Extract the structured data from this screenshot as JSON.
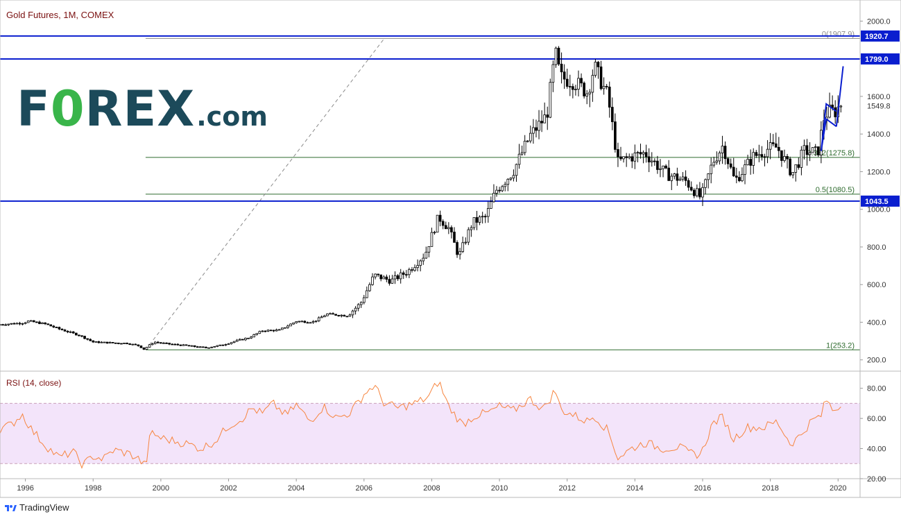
{
  "header": {
    "chart_title": "Gold Futures, 1M, COMEX",
    "rsi_title": "RSI (14, close)"
  },
  "brand": {
    "logo_main": "F",
    "logo_zero": "0",
    "logo_rest": "REX",
    "logo_domain": ".com",
    "footer": "TradingView"
  },
  "colors": {
    "up": "#ffffff",
    "down": "#000000",
    "levels": "#0a1ecf",
    "fib": "#2e6b2e",
    "rsi_line": "#f7853f",
    "rsi_band": "#f3e4fa",
    "label_bg": "#0a1ecf",
    "logo_dark": "#1c4a5a",
    "logo_green": "#39b54a"
  },
  "chart_data": {
    "type": "candlestick",
    "instrument": "Gold Futures",
    "interval": "1M",
    "exchange": "COMEX",
    "x_ticks": [
      "1996",
      "1998",
      "2000",
      "2002",
      "2004",
      "2006",
      "2008",
      "2010",
      "2012",
      "2014",
      "2016",
      "2018",
      "2020"
    ],
    "y_ticks": [
      "2000.0",
      "1800.0",
      "1600.0",
      "1400.0",
      "1200.0",
      "1000.0",
      "800.0",
      "600.0",
      "400.0",
      "200.0"
    ],
    "ylim": [
      140,
      2090
    ],
    "anchors": [
      [
        1995.25,
        388
      ],
      [
        1995.9,
        396
      ],
      [
        1996.1,
        406
      ],
      [
        1996.6,
        390
      ],
      [
        1997.0,
        364
      ],
      [
        1997.6,
        330
      ],
      [
        1998.0,
        295
      ],
      [
        1998.6,
        290
      ],
      [
        1999.0,
        288
      ],
      [
        1999.35,
        275
      ],
      [
        1999.5,
        257
      ],
      [
        1999.8,
        295
      ],
      [
        2000.2,
        285
      ],
      [
        2000.8,
        275
      ],
      [
        2001.3,
        264
      ],
      [
        2001.8,
        278
      ],
      [
        2002.2,
        300
      ],
      [
        2002.6,
        318
      ],
      [
        2003.0,
        355
      ],
      [
        2003.5,
        358
      ],
      [
        2004.0,
        405
      ],
      [
        2004.5,
        402
      ],
      [
        2004.9,
        443
      ],
      [
        2005.5,
        435
      ],
      [
        2005.9,
        500
      ],
      [
        2006.3,
        650
      ],
      [
        2006.8,
        620
      ],
      [
        2007.3,
        670
      ],
      [
        2007.8,
        760
      ],
      [
        2008.2,
        960
      ],
      [
        2008.5,
        900
      ],
      [
        2008.8,
        750
      ],
      [
        2009.2,
        930
      ],
      [
        2009.6,
        960
      ],
      [
        2009.9,
        1100
      ],
      [
        2010.4,
        1200
      ],
      [
        2010.9,
        1390
      ],
      [
        2011.4,
        1500
      ],
      [
        2011.65,
        1830
      ],
      [
        2011.8,
        1700
      ],
      [
        2012.2,
        1680
      ],
      [
        2012.6,
        1620
      ],
      [
        2012.8,
        1760
      ],
      [
        2013.2,
        1600
      ],
      [
        2013.5,
        1250
      ],
      [
        2013.9,
        1280
      ],
      [
        2014.3,
        1300
      ],
      [
        2014.9,
        1190
      ],
      [
        2015.5,
        1150
      ],
      [
        2015.95,
        1060
      ],
      [
        2016.3,
        1250
      ],
      [
        2016.6,
        1340
      ],
      [
        2016.95,
        1150
      ],
      [
        2017.5,
        1280
      ],
      [
        2017.9,
        1320
      ],
      [
        2018.2,
        1330
      ],
      [
        2018.65,
        1190
      ],
      [
        2019.0,
        1310
      ],
      [
        2019.4,
        1300
      ],
      [
        2019.6,
        1500
      ],
      [
        2019.75,
        1520
      ],
      [
        2019.95,
        1520
      ],
      [
        2020.05,
        1560
      ]
    ],
    "levels": [
      {
        "value": 1920.7,
        "label": "1920.7"
      },
      {
        "value": 1799.0,
        "label": "1799.0"
      },
      {
        "value": 1043.5,
        "label": "1043.5"
      }
    ],
    "fibonacci": [
      {
        "value": 1907.9,
        "label": "0(1907.9)"
      },
      {
        "value": 1275.8,
        "label": "0.382(1275.8)"
      },
      {
        "value": 1080.5,
        "label": "0.5(1080.5)"
      },
      {
        "value": 253.2,
        "label": "1(253.2)"
      }
    ],
    "fib_trend_line": {
      "from": [
        1999.55,
        253.2
      ],
      "to": [
        2006.6,
        1907.9
      ]
    },
    "last_price_label": "1549.8",
    "last_price": 1549.8,
    "pattern": {
      "channel_upper": [
        [
          2019.5,
          1310
        ],
        [
          2019.65,
          1560
        ],
        [
          2019.95,
          1520
        ]
      ],
      "channel_lower": [
        [
          2019.5,
          1310
        ],
        [
          2019.65,
          1480
        ],
        [
          2019.95,
          1440
        ]
      ],
      "projection": [
        [
          2019.95,
          1440
        ],
        [
          2020.15,
          1760
        ]
      ]
    },
    "rsi": {
      "period": 14,
      "ylim": [
        20,
        90
      ],
      "y_ticks": [
        "80.00",
        "60.00",
        "40.00",
        "20.00"
      ],
      "band": [
        30,
        70
      ],
      "anchors": [
        [
          1995.25,
          53
        ],
        [
          1995.6,
          56
        ],
        [
          1995.9,
          63
        ],
        [
          1996.2,
          52
        ],
        [
          1996.6,
          42
        ],
        [
          1997.0,
          34
        ],
        [
          1997.4,
          38
        ],
        [
          1997.7,
          29
        ],
        [
          1998.0,
          35
        ],
        [
          1998.3,
          33
        ],
        [
          1998.6,
          39
        ],
        [
          1999.0,
          37
        ],
        [
          1999.3,
          34
        ],
        [
          1999.55,
          28
        ],
        [
          1999.7,
          51
        ],
        [
          2000.0,
          47
        ],
        [
          2000.4,
          45
        ],
        [
          2000.8,
          43
        ],
        [
          2001.2,
          40
        ],
        [
          2001.6,
          45
        ],
        [
          2002.0,
          55
        ],
        [
          2002.4,
          60
        ],
        [
          2002.7,
          67
        ],
        [
          2003.0,
          63
        ],
        [
          2003.3,
          70
        ],
        [
          2003.7,
          62
        ],
        [
          2004.0,
          69
        ],
        [
          2004.4,
          58
        ],
        [
          2004.8,
          68
        ],
        [
          2005.2,
          60
        ],
        [
          2005.6,
          64
        ],
        [
          2006.0,
          76
        ],
        [
          2006.3,
          82
        ],
        [
          2006.6,
          70
        ],
        [
          2007.0,
          67
        ],
        [
          2007.5,
          70
        ],
        [
          2007.9,
          74
        ],
        [
          2008.2,
          85
        ],
        [
          2008.5,
          68
        ],
        [
          2008.9,
          56
        ],
        [
          2009.3,
          62
        ],
        [
          2009.7,
          64
        ],
        [
          2010.0,
          68
        ],
        [
          2010.4,
          65
        ],
        [
          2010.9,
          73
        ],
        [
          2011.3,
          66
        ],
        [
          2011.65,
          79
        ],
        [
          2011.8,
          66
        ],
        [
          2012.2,
          62
        ],
        [
          2012.6,
          58
        ],
        [
          2012.8,
          62
        ],
        [
          2013.2,
          52
        ],
        [
          2013.5,
          34
        ],
        [
          2013.9,
          40
        ],
        [
          2014.3,
          44
        ],
        [
          2014.8,
          40
        ],
        [
          2015.3,
          41
        ],
        [
          2015.6,
          37
        ],
        [
          2015.95,
          36
        ],
        [
          2016.3,
          57
        ],
        [
          2016.6,
          61
        ],
        [
          2016.9,
          46
        ],
        [
          2017.3,
          54
        ],
        [
          2017.8,
          54
        ],
        [
          2018.2,
          58
        ],
        [
          2018.6,
          43
        ],
        [
          2018.9,
          49
        ],
        [
          2019.2,
          58
        ],
        [
          2019.5,
          62
        ],
        [
          2019.65,
          73
        ],
        [
          2019.85,
          65
        ],
        [
          2020.0,
          68
        ]
      ]
    }
  }
}
